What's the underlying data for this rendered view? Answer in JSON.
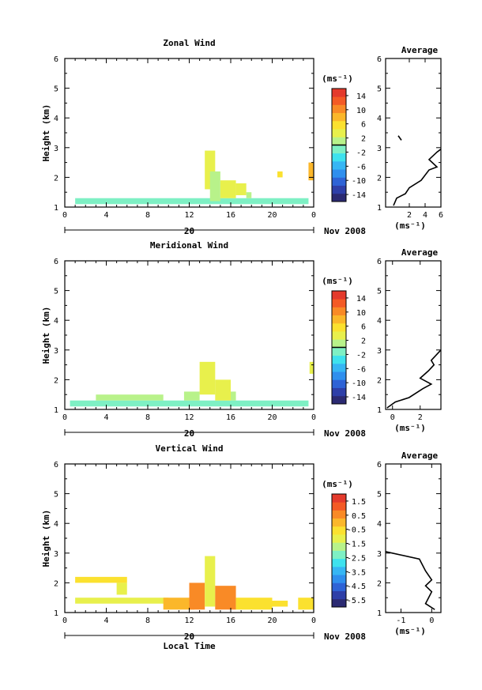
{
  "figure": {
    "xlabel": "Local Time",
    "date_tick": "20",
    "date_label": "Nov 2008",
    "avg_title": "Average",
    "avg_xlabel": "(ms⁻¹)"
  },
  "chart_data": [
    {
      "type": "heatmap",
      "title": "Zonal Wind",
      "ylabel": "Height (km)",
      "colorbar_label": "(ms⁻¹)",
      "xlim": [
        0,
        24
      ],
      "ylim": [
        1,
        6
      ],
      "x_ticks": [
        "0",
        "4",
        "8",
        "12",
        "16",
        "20",
        "0"
      ],
      "y_ticks": [
        "1",
        "2",
        "3",
        "4",
        "5",
        "6"
      ],
      "colorbar_range": [
        -16,
        16
      ],
      "colorbar_ticks": [
        "14",
        "10",
        "6",
        "2",
        "-2",
        "-6",
        "-10",
        "-14"
      ],
      "colorbar_tick_values": [
        14,
        10,
        6,
        2,
        -2,
        -6,
        -10,
        -14
      ],
      "cells": [
        {
          "x": [
            1.0,
            23.5
          ],
          "y": [
            1.1,
            1.3
          ],
          "value": -1
        },
        {
          "x": [
            13.5,
            14.5
          ],
          "y": [
            1.6,
            2.9
          ],
          "value": 4
        },
        {
          "x": [
            14.0,
            15.0
          ],
          "y": [
            1.2,
            2.2
          ],
          "value": 2
        },
        {
          "x": [
            15.0,
            16.5
          ],
          "y": [
            1.3,
            1.9
          ],
          "value": 3
        },
        {
          "x": [
            16.5,
            17.5
          ],
          "y": [
            1.4,
            1.8
          ],
          "value": 4
        },
        {
          "x": [
            17.5,
            18.0
          ],
          "y": [
            1.3,
            1.5
          ],
          "value": 1
        },
        {
          "x": [
            20.5,
            21.0
          ],
          "y": [
            2.0,
            2.2
          ],
          "value": 6
        },
        {
          "x": [
            23.5,
            24.0
          ],
          "y": [
            1.9,
            2.5
          ],
          "value": 8
        }
      ],
      "average": {
        "xlim": [
          -1,
          6
        ],
        "x_ticks": [
          "2",
          "4",
          "6"
        ],
        "x_tick_values": [
          2,
          4,
          6
        ],
        "ylim": [
          1,
          6
        ],
        "y_ticks": [
          "1",
          "2",
          "3",
          "4",
          "5",
          "6"
        ],
        "profile": [
          {
            "x": 0.0,
            "y": 1.05
          },
          {
            "x": 0.4,
            "y": 1.3
          },
          {
            "x": 1.5,
            "y": 1.45
          },
          {
            "x": 2.0,
            "y": 1.65
          },
          {
            "x": 3.5,
            "y": 1.9
          },
          {
            "x": 4.5,
            "y": 2.25
          },
          {
            "x": 5.5,
            "y": 2.35
          },
          {
            "x": 4.5,
            "y": 2.6
          },
          {
            "x": 5.5,
            "y": 2.85
          },
          {
            "x": 6.0,
            "y": 2.95
          }
        ],
        "profile_upper": [
          {
            "x": 1.0,
            "y": 3.25
          },
          {
            "x": 0.6,
            "y": 3.4
          }
        ]
      }
    },
    {
      "type": "heatmap",
      "title": "Meridional Wind",
      "ylabel": "Height (km)",
      "colorbar_label": "(ms⁻¹)",
      "xlim": [
        0,
        24
      ],
      "ylim": [
        1,
        6
      ],
      "x_ticks": [
        "0",
        "4",
        "8",
        "12",
        "16",
        "20",
        "0"
      ],
      "y_ticks": [
        "1",
        "2",
        "3",
        "4",
        "5",
        "6"
      ],
      "colorbar_range": [
        -16,
        16
      ],
      "colorbar_ticks": [
        "14",
        "10",
        "6",
        "2",
        "-2",
        "-6",
        "-10",
        "-14"
      ],
      "colorbar_tick_values": [
        14,
        10,
        6,
        2,
        -2,
        -6,
        -10,
        -14
      ],
      "cells": [
        {
          "x": [
            0.5,
            23.5
          ],
          "y": [
            1.1,
            1.3
          ],
          "value": -1
        },
        {
          "x": [
            3.0,
            9.5
          ],
          "y": [
            1.3,
            1.5
          ],
          "value": 0
        },
        {
          "x": [
            11.5,
            13.0
          ],
          "y": [
            1.3,
            1.6
          ],
          "value": 2
        },
        {
          "x": [
            13.0,
            14.5
          ],
          "y": [
            1.5,
            2.6
          ],
          "value": 4
        },
        {
          "x": [
            14.5,
            16.0
          ],
          "y": [
            1.3,
            2.0
          ],
          "value": 3
        },
        {
          "x": [
            16.0,
            16.5
          ],
          "y": [
            1.3,
            1.6
          ],
          "value": 2
        },
        {
          "x": [
            23.6,
            24.0
          ],
          "y": [
            2.2,
            2.6
          ],
          "value": 3
        }
      ],
      "average": {
        "xlim": [
          -0.5,
          3.5
        ],
        "x_ticks": [
          "0",
          "2"
        ],
        "x_tick_values": [
          0,
          2
        ],
        "ylim": [
          1,
          6
        ],
        "y_ticks": [
          "1",
          "2",
          "3",
          "4",
          "5",
          "6"
        ],
        "profile": [
          {
            "x": -0.4,
            "y": 1.05
          },
          {
            "x": 0.2,
            "y": 1.25
          },
          {
            "x": 1.2,
            "y": 1.4
          },
          {
            "x": 2.2,
            "y": 1.7
          },
          {
            "x": 2.8,
            "y": 1.85
          },
          {
            "x": 2.0,
            "y": 2.05
          },
          {
            "x": 2.6,
            "y": 2.3
          },
          {
            "x": 3.0,
            "y": 2.5
          },
          {
            "x": 2.8,
            "y": 2.65
          },
          {
            "x": 3.2,
            "y": 2.85
          },
          {
            "x": 3.5,
            "y": 3.0
          }
        ],
        "profile_upper": []
      }
    },
    {
      "type": "heatmap",
      "title": "Vertical Wind",
      "ylabel": "Height (km)",
      "colorbar_label": "(ms⁻¹)",
      "xlim": [
        0,
        24
      ],
      "ylim": [
        1,
        6
      ],
      "x_ticks": [
        "0",
        "4",
        "8",
        "12",
        "16",
        "20",
        "0"
      ],
      "y_ticks": [
        "1",
        "2",
        "3",
        "4",
        "5",
        "6"
      ],
      "colorbar_range": [
        -6.0,
        2.0
      ],
      "colorbar_ticks": [
        "1.5",
        "0.5",
        "-0.5",
        "-1.5",
        "-2.5",
        "-3.5",
        "-4.5",
        "-5.5"
      ],
      "colorbar_tick_values": [
        1.5,
        0.5,
        -0.5,
        -1.5,
        -2.5,
        -3.5,
        -4.5,
        -5.5
      ],
      "cells": [
        {
          "x": [
            1.0,
            10.0
          ],
          "y": [
            1.3,
            1.5
          ],
          "value": -0.9
        },
        {
          "x": [
            1.0,
            6.0
          ],
          "y": [
            2.0,
            2.2
          ],
          "value": -0.8
        },
        {
          "x": [
            5.0,
            6.0
          ],
          "y": [
            1.6,
            2.0
          ],
          "value": -1.0
        },
        {
          "x": [
            9.5,
            12.5
          ],
          "y": [
            1.1,
            1.5
          ],
          "value": 0.2
        },
        {
          "x": [
            12.0,
            13.5
          ],
          "y": [
            1.1,
            2.0
          ],
          "value": 0.5
        },
        {
          "x": [
            13.5,
            14.5
          ],
          "y": [
            1.2,
            2.9
          ],
          "value": -1.0
        },
        {
          "x": [
            14.5,
            16.5
          ],
          "y": [
            1.1,
            1.9
          ],
          "value": 0.6
        },
        {
          "x": [
            16.5,
            20.0
          ],
          "y": [
            1.1,
            1.5
          ],
          "value": -0.4
        },
        {
          "x": [
            20.0,
            21.5
          ],
          "y": [
            1.2,
            1.4
          ],
          "value": -0.8
        },
        {
          "x": [
            22.5,
            24.0
          ],
          "y": [
            1.1,
            1.5
          ],
          "value": -0.8
        }
      ],
      "average": {
        "xlim": [
          -1.5,
          0.3
        ],
        "x_ticks": [
          "-1",
          "0"
        ],
        "x_tick_values": [
          -1,
          0
        ],
        "ylim": [
          1,
          6
        ],
        "y_ticks": [
          "1",
          "2",
          "3",
          "4",
          "5",
          "6"
        ],
        "profile": [
          {
            "x": 0.1,
            "y": 1.1
          },
          {
            "x": -0.2,
            "y": 1.3
          },
          {
            "x": -0.1,
            "y": 1.5
          },
          {
            "x": 0.0,
            "y": 1.7
          },
          {
            "x": -0.2,
            "y": 1.9
          },
          {
            "x": 0.0,
            "y": 2.1
          },
          {
            "x": -0.2,
            "y": 2.4
          },
          {
            "x": -0.4,
            "y": 2.8
          },
          {
            "x": -1.5,
            "y": 3.05
          }
        ],
        "profile_upper": []
      }
    }
  ]
}
